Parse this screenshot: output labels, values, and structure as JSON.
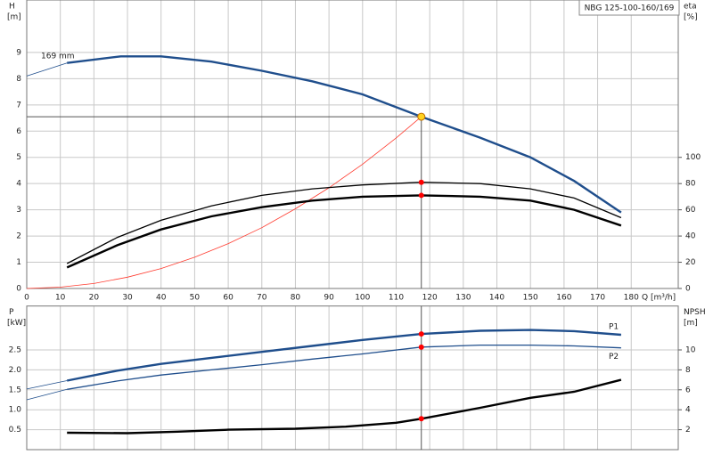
{
  "chart_data": [
    {
      "type": "line",
      "model": "NBG 125-100-160/169",
      "annotation": "169 mm",
      "y_label": "H",
      "y_unit": "[m]",
      "y2_label": "eta",
      "y2_unit": "[%]",
      "x_label": "Q [m³/h]",
      "xlim": [
        0,
        194
      ],
      "xticks": [
        0,
        10,
        20,
        30,
        40,
        50,
        60,
        70,
        80,
        90,
        100,
        110,
        120,
        130,
        140,
        150,
        160,
        170,
        180
      ],
      "ylim": [
        0,
        11
      ],
      "yticks": [
        0,
        1,
        2,
        3,
        4,
        5,
        6,
        7,
        8,
        9
      ],
      "y2lim": [
        0,
        220
      ],
      "y2ticks": [
        0,
        20,
        40,
        60,
        80,
        100
      ],
      "grid": true,
      "duty_x": 117.5,
      "series": [
        {
          "color": "#1f4e8c",
          "style": "thin",
          "x": [
            0,
            12
          ],
          "values": [
            8.1,
            8.6
          ]
        },
        {
          "color": "#1f4e8c",
          "style": "thick",
          "crosshair": true,
          "marker_color": "#ffd21f",
          "x": [
            12,
            28,
            40,
            55,
            70,
            85,
            100,
            117.5,
            135,
            150,
            163,
            177
          ],
          "values": [
            8.6,
            8.85,
            8.85,
            8.65,
            8.3,
            7.9,
            7.4,
            6.55,
            5.75,
            5.0,
            4.1,
            2.9
          ]
        },
        {
          "color": "#ff3b2f",
          "style": "thin",
          "x": [
            0,
            10,
            20,
            30,
            40,
            50,
            60,
            70,
            80,
            90,
            100,
            110,
            117.5
          ],
          "values": [
            0,
            0.05,
            0.19,
            0.43,
            0.76,
            1.19,
            1.71,
            2.32,
            3.04,
            3.84,
            4.74,
            5.74,
            6.55
          ]
        },
        {
          "color": "#000000",
          "style": "medium",
          "axis": "y2",
          "marker_color": "#ff0000",
          "x": [
            12,
            27,
            40,
            55,
            70,
            85,
            100,
            117.5,
            135,
            150,
            163,
            177
          ],
          "values": [
            19,
            39,
            52,
            63,
            71,
            76,
            79,
            81,
            80,
            76,
            69,
            54
          ]
        },
        {
          "color": "#000000",
          "style": "thick",
          "axis": "y2",
          "marker_color": "#ff0000",
          "x": [
            12,
            27,
            40,
            55,
            70,
            85,
            100,
            117.5,
            135,
            150,
            163,
            177
          ],
          "values": [
            16,
            33,
            45,
            55,
            62,
            67,
            70,
            71,
            70,
            67,
            60,
            48
          ]
        }
      ]
    },
    {
      "type": "line",
      "y_label": "P",
      "y_unit": "[kW]",
      "y2_label": "NPSH",
      "y2_unit": "[m]",
      "xlim": [
        0,
        194
      ],
      "xgrid": [
        0,
        10,
        20,
        30,
        40,
        50,
        60,
        70,
        80,
        90,
        100,
        110,
        120,
        130,
        140,
        150,
        160,
        170,
        180
      ],
      "ylim": [
        0,
        3.6
      ],
      "yticks": [
        0.5,
        {
          "value": 1,
          "label": "1.0"
        },
        1.5,
        {
          "value": 2,
          "label": "2.0"
        },
        2.5
      ],
      "y2lim": [
        0,
        14.4
      ],
      "y2ticks": [
        2,
        4,
        6,
        8,
        10
      ],
      "grid": true,
      "duty_x": 117.5,
      "vertical_line": true,
      "series": [
        {
          "color": "#1f4e8c",
          "style": "thin",
          "x": [
            0,
            12
          ],
          "values": [
            1.52,
            1.73
          ]
        },
        {
          "name": "P1",
          "color": "#1f4e8c",
          "style": "thick",
          "label_side": "above",
          "marker_color": "#ff0000",
          "x": [
            12,
            27,
            40,
            55,
            70,
            85,
            100,
            117.5,
            135,
            150,
            163,
            177
          ],
          "values": [
            1.73,
            1.98,
            2.15,
            2.3,
            2.45,
            2.6,
            2.75,
            2.9,
            2.98,
            3.0,
            2.97,
            2.88
          ]
        },
        {
          "color": "#1f4e8c",
          "style": "thin",
          "x": [
            0,
            12
          ],
          "values": [
            1.25,
            1.51
          ]
        },
        {
          "name": "P2",
          "color": "#1f4e8c",
          "style": "medium",
          "label_side": "below",
          "marker_color": "#ff0000",
          "x": [
            12,
            27,
            40,
            55,
            70,
            85,
            100,
            117.5,
            135,
            150,
            163,
            177
          ],
          "values": [
            1.51,
            1.72,
            1.87,
            2.0,
            2.13,
            2.27,
            2.4,
            2.57,
            2.62,
            2.62,
            2.6,
            2.55
          ]
        },
        {
          "color": "#000000",
          "style": "thick",
          "axis": "y2",
          "marker_color": "#ff0000",
          "x": [
            12,
            30,
            45,
            60,
            80,
            95,
            110,
            117.5,
            135,
            150,
            163,
            177
          ],
          "values": [
            1.7,
            1.65,
            1.8,
            2.0,
            2.1,
            2.3,
            2.7,
            3.1,
            4.2,
            5.2,
            5.8,
            7.0
          ]
        }
      ]
    }
  ]
}
